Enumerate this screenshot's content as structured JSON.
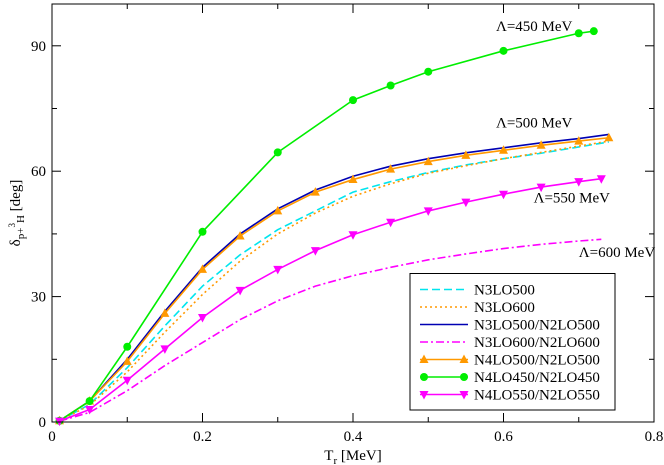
{
  "chart_data": {
    "type": "line",
    "xlabel_main": "T",
    "xlabel_sub": "r",
    "xlabel_unit": " [MeV]",
    "ylabel_main": "δ",
    "ylabel_sub": "p+",
    "ylabel_sup": "3",
    "ylabel_sub2": "H",
    "ylabel_unit": " [deg]",
    "xlim": [
      0,
      0.8
    ],
    "ylim": [
      0,
      100
    ],
    "xticks": [
      0,
      0.2,
      0.4,
      0.6,
      0.8
    ],
    "xtick_labels": [
      "0",
      "0.2",
      "0.4",
      "0.6",
      "0.8"
    ],
    "yticks": [
      0,
      30,
      60,
      90
    ],
    "ytick_labels": [
      "0",
      "30",
      "60",
      "90"
    ],
    "grid": false,
    "legend_position": "bottom-right",
    "annotations": [
      {
        "text": "Λ=450 MeV",
        "x": 0.59,
        "y": 93.5
      },
      {
        "text": "Λ=500 MeV",
        "x": 0.59,
        "y": 70.5
      },
      {
        "text": "Λ=550 MeV",
        "x": 0.64,
        "y": 52.5
      },
      {
        "text": "Λ=600 MeV",
        "x": 0.7,
        "y": 39.5
      }
    ],
    "series": [
      {
        "name": "N3LO500",
        "color": "#00e5ee",
        "dash": "dashed",
        "marker": "none",
        "x": [
          0.01,
          0.05,
          0.1,
          0.15,
          0.2,
          0.25,
          0.3,
          0.35,
          0.4,
          0.45,
          0.5,
          0.55,
          0.6,
          0.65,
          0.7,
          0.74
        ],
        "y": [
          0.3,
          4.2,
          13.0,
          23.0,
          32.5,
          40.0,
          46.0,
          50.5,
          55.0,
          57.5,
          59.7,
          61.5,
          63.0,
          64.3,
          65.8,
          67.0
        ]
      },
      {
        "name": "N3LO600",
        "color": "#ff9900",
        "dash": "dotted",
        "marker": "none",
        "x": [
          0.01,
          0.05,
          0.1,
          0.15,
          0.2,
          0.25,
          0.3,
          0.35,
          0.4,
          0.45,
          0.5,
          0.55,
          0.6,
          0.65,
          0.7,
          0.74
        ],
        "y": [
          0.3,
          4.0,
          12.0,
          21.5,
          30.5,
          38.5,
          45.0,
          50.0,
          54.0,
          57.0,
          59.5,
          61.3,
          63.0,
          64.5,
          66.0,
          67.2
        ]
      },
      {
        "name": "N3LO500/N2LO500",
        "color": "#0000b3",
        "dash": "solid",
        "marker": "none",
        "x": [
          0.01,
          0.05,
          0.1,
          0.15,
          0.2,
          0.25,
          0.3,
          0.35,
          0.4,
          0.45,
          0.5,
          0.55,
          0.6,
          0.65,
          0.7,
          0.74
        ],
        "y": [
          0.3,
          5.0,
          15.0,
          26.5,
          37.0,
          45.0,
          51.0,
          55.5,
          58.8,
          61.2,
          63.0,
          64.4,
          65.6,
          66.8,
          67.8,
          68.8
        ]
      },
      {
        "name": "N3LO600/N2LO600",
        "color": "#ff00ff",
        "dash": "dashdot",
        "marker": "none",
        "x": [
          0.01,
          0.05,
          0.1,
          0.15,
          0.2,
          0.25,
          0.3,
          0.35,
          0.4,
          0.45,
          0.5,
          0.55,
          0.6,
          0.65,
          0.7,
          0.73
        ],
        "y": [
          0.2,
          2.3,
          7.5,
          13.5,
          19.0,
          24.5,
          29.0,
          32.5,
          35.0,
          37.0,
          38.8,
          40.2,
          41.5,
          42.5,
          43.3,
          43.7
        ]
      },
      {
        "name": "N4LO500/N2LO500",
        "color": "#ff9900",
        "dash": "solid",
        "marker": "triangle-up",
        "x": [
          0.01,
          0.05,
          0.1,
          0.15,
          0.2,
          0.25,
          0.3,
          0.35,
          0.4,
          0.45,
          0.5,
          0.55,
          0.6,
          0.65,
          0.7,
          0.74
        ],
        "y": [
          0.3,
          5.0,
          14.5,
          26.0,
          36.5,
          44.5,
          50.5,
          55.0,
          58.0,
          60.5,
          62.3,
          63.8,
          65.0,
          66.2,
          67.2,
          68.0
        ]
      },
      {
        "name": "N4LO450/N2LO450",
        "color": "#00ee00",
        "dash": "solid",
        "marker": "circle",
        "x": [
          0.01,
          0.05,
          0.1,
          0.2,
          0.3,
          0.4,
          0.45,
          0.5,
          0.6,
          0.7,
          0.72
        ],
        "y": [
          0.3,
          5.0,
          18.0,
          45.5,
          64.5,
          77.0,
          80.5,
          83.8,
          88.8,
          93.0,
          93.5
        ]
      },
      {
        "name": "N4LO550/N2LO550",
        "color": "#ff00ff",
        "dash": "solid",
        "marker": "triangle-down",
        "x": [
          0.01,
          0.05,
          0.1,
          0.15,
          0.2,
          0.25,
          0.3,
          0.35,
          0.4,
          0.45,
          0.5,
          0.55,
          0.6,
          0.65,
          0.7,
          0.73
        ],
        "y": [
          0.2,
          3.0,
          10.0,
          17.5,
          25.0,
          31.5,
          36.5,
          41.0,
          44.8,
          47.8,
          50.5,
          52.6,
          54.5,
          56.2,
          57.5,
          58.2
        ]
      }
    ]
  }
}
